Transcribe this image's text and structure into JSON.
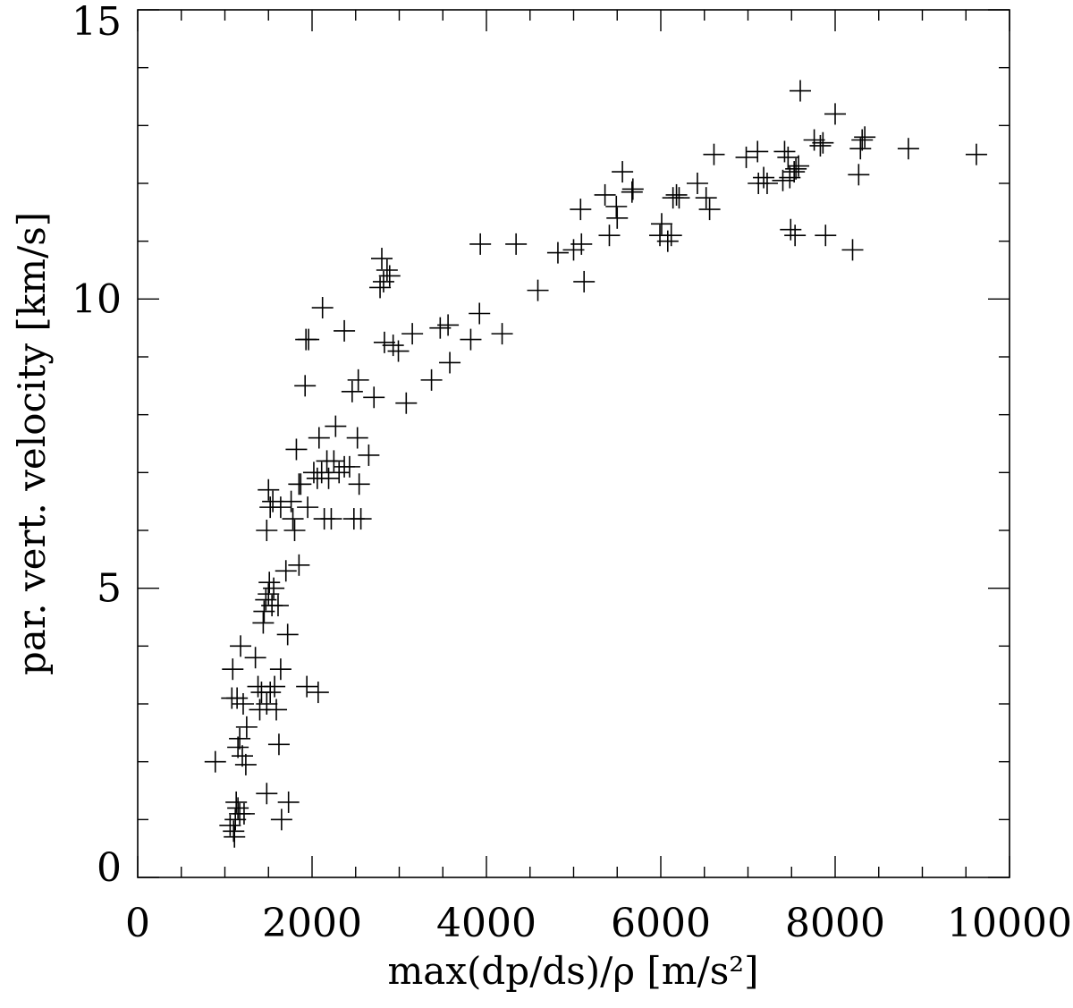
{
  "chart_data": {
    "type": "scatter",
    "title": "",
    "xlabel": "max(dp/ds)/ρ [m/s²]",
    "ylabel": "par. vert. velocity [km/s]",
    "xlim": [
      0,
      10000
    ],
    "ylim": [
      0,
      15
    ],
    "x_major_ticks": [
      0,
      2000,
      4000,
      6000,
      8000,
      10000
    ],
    "y_major_ticks": [
      0,
      5,
      10,
      15
    ],
    "x_tick_labels": [
      "0",
      "2000",
      "4000",
      "6000",
      "8000",
      "10000"
    ],
    "y_tick_labels": [
      "0",
      "5",
      "10",
      "15"
    ],
    "x_minor_step": 500,
    "y_minor_step": 1,
    "marker": "plus",
    "grid": false,
    "color": "#000000",
    "points": [
      [
        890,
        2.0
      ],
      [
        1060,
        0.9
      ],
      [
        1100,
        0.8
      ],
      [
        1110,
        0.7
      ],
      [
        1120,
        1.0
      ],
      [
        1130,
        1.3
      ],
      [
        1150,
        1.2
      ],
      [
        1170,
        1.1
      ],
      [
        1220,
        1.1
      ],
      [
        1480,
        1.45
      ],
      [
        1650,
        1.0
      ],
      [
        1730,
        1.3
      ],
      [
        1090,
        3.6
      ],
      [
        1080,
        3.1
      ],
      [
        1140,
        3.1
      ],
      [
        1150,
        2.25
      ],
      [
        1170,
        2.4
      ],
      [
        1180,
        4.0
      ],
      [
        1200,
        2.1
      ],
      [
        1210,
        3.0
      ],
      [
        1240,
        1.95
      ],
      [
        1250,
        2.6
      ],
      [
        1350,
        3.8
      ],
      [
        1380,
        3.3
      ],
      [
        1400,
        2.9
      ],
      [
        1420,
        3.2
      ],
      [
        1440,
        4.4
      ],
      [
        1450,
        4.6
      ],
      [
        1470,
        4.8
      ],
      [
        1480,
        3.0
      ],
      [
        1500,
        4.9
      ],
      [
        1510,
        5.1
      ],
      [
        1520,
        3.2
      ],
      [
        1540,
        4.7
      ],
      [
        1560,
        5.0
      ],
      [
        1570,
        3.3
      ],
      [
        1590,
        2.9
      ],
      [
        1610,
        4.7
      ],
      [
        1620,
        2.3
      ],
      [
        1640,
        3.6
      ],
      [
        1700,
        5.3
      ],
      [
        1720,
        4.2
      ],
      [
        1850,
        5.4
      ],
      [
        1940,
        3.3
      ],
      [
        2070,
        3.2
      ],
      [
        1480,
        6.0
      ],
      [
        1500,
        6.7
      ],
      [
        1520,
        6.4
      ],
      [
        1550,
        6.5
      ],
      [
        1640,
        6.4
      ],
      [
        1760,
        6.5
      ],
      [
        1780,
        6.2
      ],
      [
        1800,
        6.0
      ],
      [
        1820,
        7.4
      ],
      [
        1850,
        6.8
      ],
      [
        1870,
        6.8
      ],
      [
        1950,
        6.4
      ],
      [
        2020,
        7.0
      ],
      [
        2060,
        6.9
      ],
      [
        2080,
        7.6
      ],
      [
        2110,
        7.0
      ],
      [
        2140,
        6.2
      ],
      [
        2170,
        7.2
      ],
      [
        2190,
        6.9
      ],
      [
        2220,
        6.2
      ],
      [
        2250,
        7.2
      ],
      [
        2270,
        7.8
      ],
      [
        2310,
        7.0
      ],
      [
        2370,
        7.1
      ],
      [
        2430,
        7.1
      ],
      [
        2480,
        6.2
      ],
      [
        2520,
        7.6
      ],
      [
        2540,
        6.8
      ],
      [
        2560,
        6.2
      ],
      [
        2650,
        7.3
      ],
      [
        1920,
        8.5
      ],
      [
        1930,
        9.3
      ],
      [
        1960,
        9.3
      ],
      [
        2120,
        9.85
      ],
      [
        2370,
        9.45
      ],
      [
        2460,
        8.4
      ],
      [
        2530,
        8.6
      ],
      [
        2710,
        8.3
      ],
      [
        2780,
        10.2
      ],
      [
        2800,
        10.7
      ],
      [
        2820,
        10.3
      ],
      [
        2830,
        9.25
      ],
      [
        2860,
        10.5
      ],
      [
        2890,
        10.4
      ],
      [
        2930,
        9.2
      ],
      [
        2990,
        9.1
      ],
      [
        3080,
        8.2
      ],
      [
        3150,
        9.4
      ],
      [
        3370,
        8.6
      ],
      [
        3470,
        9.5
      ],
      [
        3560,
        9.55
      ],
      [
        3580,
        8.9
      ],
      [
        3820,
        9.3
      ],
      [
        3920,
        9.75
      ],
      [
        3930,
        10.95
      ],
      [
        4180,
        9.4
      ],
      [
        4340,
        10.95
      ],
      [
        4590,
        10.15
      ],
      [
        4820,
        10.8
      ],
      [
        5000,
        10.85
      ],
      [
        5080,
        11.55
      ],
      [
        5090,
        10.95
      ],
      [
        5120,
        10.3
      ],
      [
        5360,
        11.8
      ],
      [
        5410,
        11.1
      ],
      [
        5490,
        11.6
      ],
      [
        5500,
        11.4
      ],
      [
        5560,
        12.2
      ],
      [
        5670,
        11.85
      ],
      [
        5680,
        11.9
      ],
      [
        5990,
        11.1
      ],
      [
        6010,
        11.3
      ],
      [
        6080,
        11.0
      ],
      [
        6120,
        11.1
      ],
      [
        6140,
        11.75
      ],
      [
        6180,
        11.8
      ],
      [
        6210,
        11.75
      ],
      [
        6420,
        12.0
      ],
      [
        6520,
        11.75
      ],
      [
        6560,
        11.55
      ],
      [
        6610,
        12.5
      ],
      [
        6980,
        12.45
      ],
      [
        7110,
        12.55
      ],
      [
        7120,
        12.0
      ],
      [
        7180,
        12.1
      ],
      [
        7220,
        12.0
      ],
      [
        7400,
        12.05
      ],
      [
        7420,
        12.55
      ],
      [
        7460,
        12.45
      ],
      [
        7480,
        12.1
      ],
      [
        7490,
        11.2
      ],
      [
        7530,
        12.2
      ],
      [
        7540,
        11.1
      ],
      [
        7550,
        12.25
      ],
      [
        7580,
        12.3
      ],
      [
        7600,
        13.6
      ],
      [
        7760,
        12.75
      ],
      [
        7830,
        12.65
      ],
      [
        7860,
        12.7
      ],
      [
        7890,
        11.1
      ],
      [
        8000,
        13.2
      ],
      [
        8200,
        10.85
      ],
      [
        8270,
        12.15
      ],
      [
        8290,
        12.6
      ],
      [
        8310,
        12.75
      ],
      [
        8340,
        12.8
      ],
      [
        8840,
        12.6
      ],
      [
        9620,
        12.5
      ]
    ]
  }
}
